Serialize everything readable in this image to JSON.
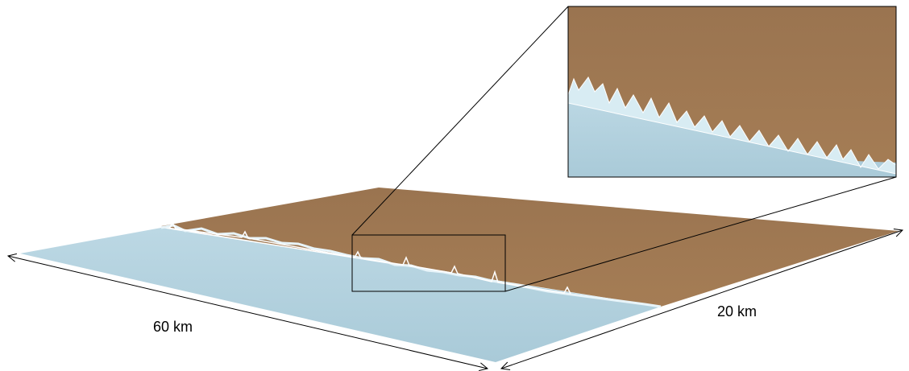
{
  "labels": {
    "length": "60 km",
    "width": "20 km"
  }
}
